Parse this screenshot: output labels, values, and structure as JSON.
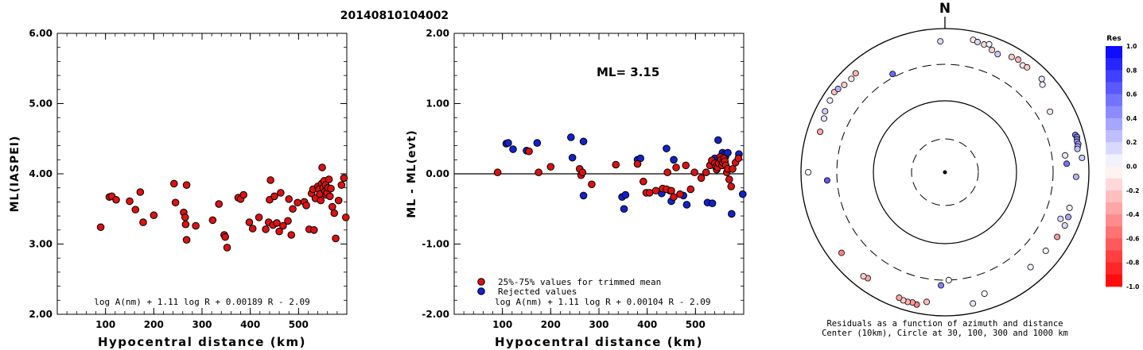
{
  "title": "20140810104002",
  "chart_data": [
    {
      "type": "scatter",
      "name_id": "magnitude",
      "xlabel": "Hypocentral distance (km)",
      "ylabel": "ML(IASPEI)",
      "xlim": [
        0,
        600
      ],
      "ylim": [
        2,
        6
      ],
      "xticks": [
        "100",
        "200",
        "300",
        "400",
        "500"
      ],
      "yticks": [
        "2.00",
        "3.00",
        "4.00",
        "5.00",
        "6.00"
      ],
      "formula": "log A(nm) + 1.11 log R + 0.00189 R - 2.09",
      "points": [
        [
          90,
          3.24
        ],
        [
          108,
          3.67
        ],
        [
          113,
          3.68
        ],
        [
          122,
          3.63
        ],
        [
          150,
          3.61
        ],
        [
          162,
          3.49
        ],
        [
          172,
          3.74
        ],
        [
          178,
          3.31
        ],
        [
          200,
          3.41
        ],
        [
          242,
          3.86
        ],
        [
          245,
          3.59
        ],
        [
          262,
          3.45
        ],
        [
          265,
          3.38
        ],
        [
          266,
          3.28
        ],
        [
          268,
          3.06
        ],
        [
          268,
          3.84
        ],
        [
          287,
          3.26
        ],
        [
          322,
          3.34
        ],
        [
          335,
          3.57
        ],
        [
          346,
          3.13
        ],
        [
          348,
          3.1
        ],
        [
          352,
          2.95
        ],
        [
          375,
          3.66
        ],
        [
          380,
          3.64
        ],
        [
          386,
          3.7
        ],
        [
          398,
          3.31
        ],
        [
          405,
          3.22
        ],
        [
          418,
          3.38
        ],
        [
          432,
          3.21
        ],
        [
          438,
          3.31
        ],
        [
          440,
          3.63
        ],
        [
          442,
          3.91
        ],
        [
          447,
          3.27
        ],
        [
          450,
          3.68
        ],
        [
          455,
          3.3
        ],
        [
          460,
          3.18
        ],
        [
          463,
          3.73
        ],
        [
          468,
          3.26
        ],
        [
          478,
          3.33
        ],
        [
          480,
          3.64
        ],
        [
          485,
          3.13
        ],
        [
          488,
          3.5
        ],
        [
          498,
          3.59
        ],
        [
          512,
          3.6
        ],
        [
          516,
          3.55
        ],
        [
          522,
          3.21
        ],
        [
          527,
          3.72
        ],
        [
          530,
          3.78
        ],
        [
          532,
          3.2
        ],
        [
          535,
          3.65
        ],
        [
          540,
          3.82
        ],
        [
          542,
          3.78
        ],
        [
          544,
          3.71
        ],
        [
          546,
          3.62
        ],
        [
          548,
          3.86
        ],
        [
          549,
          4.09
        ],
        [
          551,
          3.8
        ],
        [
          553,
          3.9
        ],
        [
          555,
          3.75
        ],
        [
          556,
          3.84
        ],
        [
          557,
          3.7
        ],
        [
          559,
          3.73
        ],
        [
          561,
          3.8
        ],
        [
          563,
          3.92
        ],
        [
          565,
          3.68
        ],
        [
          567,
          3.79
        ],
        [
          570,
          3.53
        ],
        [
          574,
          3.44
        ],
        [
          577,
          3.08
        ],
        [
          583,
          3.62
        ],
        [
          589,
          3.84
        ],
        [
          594,
          3.94
        ],
        [
          598,
          3.38
        ]
      ]
    },
    {
      "type": "scatter",
      "name_id": "residual",
      "xlabel": "Hypocentral distance (km)",
      "ylabel": "ML - ML(evt)",
      "xlim": [
        0,
        600
      ],
      "ylim": [
        -2,
        2
      ],
      "xticks": [
        "100",
        "200",
        "300",
        "400",
        "500"
      ],
      "yticks": [
        "-2.00",
        "-1.00",
        "0.00",
        "1.00",
        "2.00"
      ],
      "annotation": "ML= 3.15",
      "formula": "log A(nm) + 1.11 log R + 0.00104 R - 2.09",
      "legend": [
        {
          "label": "25%-75% values for trimmed mean",
          "color": "#dd1111"
        },
        {
          "label": "Rejected values",
          "color": "#1122cc"
        }
      ],
      "trimmed": [
        [
          90,
          0.02
        ],
        [
          155,
          0.32
        ],
        [
          175,
          0.02
        ],
        [
          200,
          0.1
        ],
        [
          260,
          0.07
        ],
        [
          263,
          -0.02
        ],
        [
          266,
          0.02
        ],
        [
          285,
          -0.15
        ],
        [
          335,
          0.13
        ],
        [
          380,
          0.14
        ],
        [
          392,
          -0.11
        ],
        [
          398,
          -0.27
        ],
        [
          405,
          -0.27
        ],
        [
          418,
          -0.24
        ],
        [
          432,
          -0.21
        ],
        [
          440,
          -0.22
        ],
        [
          442,
          0.02
        ],
        [
          450,
          -0.24
        ],
        [
          455,
          -0.33
        ],
        [
          460,
          0.09
        ],
        [
          468,
          -0.29
        ],
        [
          480,
          0.12
        ],
        [
          490,
          -0.22
        ],
        [
          498,
          0.02
        ],
        [
          512,
          -0.06
        ],
        [
          522,
          0.02
        ],
        [
          530,
          0.12
        ],
        [
          534,
          0.19
        ],
        [
          540,
          0.15
        ],
        [
          542,
          0.1
        ],
        [
          544,
          0.06
        ],
        [
          546,
          0.09
        ],
        [
          548,
          0.15
        ],
        [
          551,
          0.24
        ],
        [
          553,
          0.2
        ],
        [
          555,
          0.12
        ],
        [
          557,
          0.16
        ],
        [
          559,
          0.22
        ],
        [
          561,
          0.18
        ],
        [
          563,
          0.12
        ],
        [
          565,
          0.02
        ],
        [
          567,
          0.07
        ],
        [
          570,
          -0.08
        ],
        [
          574,
          -0.18
        ],
        [
          577,
          0.07
        ],
        [
          583,
          0.16
        ],
        [
          589,
          0.22
        ]
      ],
      "rejected": [
        [
          108,
          0.43
        ],
        [
          112,
          0.44
        ],
        [
          122,
          0.35
        ],
        [
          150,
          0.33
        ],
        [
          172,
          0.44
        ],
        [
          242,
          0.52
        ],
        [
          245,
          0.23
        ],
        [
          268,
          0.46
        ],
        [
          268,
          -0.31
        ],
        [
          348,
          -0.33
        ],
        [
          352,
          -0.5
        ],
        [
          355,
          -0.3
        ],
        [
          380,
          0.2
        ],
        [
          386,
          0.22
        ],
        [
          430,
          -0.28
        ],
        [
          440,
          0.36
        ],
        [
          447,
          -0.24
        ],
        [
          450,
          -0.39
        ],
        [
          455,
          0.2
        ],
        [
          475,
          -0.31
        ],
        [
          482,
          -0.44
        ],
        [
          525,
          -0.41
        ],
        [
          535,
          -0.42
        ],
        [
          540,
          0.22
        ],
        [
          547,
          0.48
        ],
        [
          552,
          0.24
        ],
        [
          556,
          0.3
        ],
        [
          560,
          0.27
        ],
        [
          562,
          0.24
        ],
        [
          567,
          0.3
        ],
        [
          575,
          -0.57
        ],
        [
          590,
          0.28
        ],
        [
          598,
          -0.29
        ]
      ]
    },
    {
      "type": "scatter",
      "name_id": "azimuth",
      "north_label": "N",
      "caption_line1": "Residuals as a function of azimuth and distance",
      "caption_line2": "Center (10km), Circle at 30, 100, 300 and 1000 km",
      "colorbar_title": "Res",
      "colorbar_ticks": [
        "1.0",
        "0.8",
        "0.6",
        "0.4",
        "0.2",
        "0.0",
        "-0.2",
        "-0.4",
        "-0.6",
        "-0.8",
        "-1.0"
      ],
      "points": [
        [
          358,
          1000,
          0.15
        ],
        [
          12,
          1200,
          -0.1
        ],
        [
          14,
          1150,
          0.15
        ],
        [
          17,
          1120,
          -0.15
        ],
        [
          19,
          1200,
          0.05
        ],
        [
          21,
          1000,
          -0.2
        ],
        [
          24,
          950,
          0.2
        ],
        [
          30,
          1100,
          -0.2
        ],
        [
          33,
          1150,
          -0.3
        ],
        [
          36,
          1050,
          -0.1
        ],
        [
          38,
          1100,
          -0.2
        ],
        [
          46,
          1150,
          0.1
        ],
        [
          48,
          1000,
          0.05
        ],
        [
          60,
          700,
          -0.1
        ],
        [
          74,
          1200,
          0.5
        ],
        [
          75,
          1250,
          0.5
        ],
        [
          76,
          1220,
          0.45
        ],
        [
          77,
          1200,
          0.35
        ],
        [
          78,
          1230,
          0.4
        ],
        [
          79,
          1180,
          0.3
        ],
        [
          80,
          1150,
          0.25
        ],
        [
          82,
          700,
          0.1
        ],
        [
          84,
          1300,
          0.2
        ],
        [
          86,
          720,
          0.55
        ],
        [
          92,
          1000,
          0.3
        ],
        [
          106,
          950,
          0.05
        ],
        [
          110,
          1000,
          0.35
        ],
        [
          112,
          800,
          0.15
        ],
        [
          114,
          1000,
          0.15
        ],
        [
          120,
          950,
          -0.4
        ],
        [
          128,
          900,
          0.05
        ],
        [
          138,
          900,
          0.05
        ],
        [
          162,
          900,
          0.0
        ],
        [
          168,
          1150,
          0.1
        ],
        [
          178,
          300,
          0.0
        ],
        [
          182,
          460,
          0.5
        ],
        [
          188,
          1000,
          -0.25
        ],
        [
          192,
          1200,
          -0.5
        ],
        [
          194,
          1150,
          -0.4
        ],
        [
          196,
          1180,
          -0.3
        ],
        [
          198,
          1170,
          -0.2
        ],
        [
          200,
          1120,
          -0.35
        ],
        [
          216,
          1000,
          -0.35
        ],
        [
          218,
          1050,
          -0.2
        ],
        [
          232,
          1000,
          -0.5
        ],
        [
          266,
          600,
          0.65
        ],
        [
          270,
          1250,
          0.0
        ],
        [
          288,
          1000,
          -0.35
        ],
        [
          294,
          1050,
          0.1
        ],
        [
          297,
          1150,
          0.2
        ],
        [
          302,
          1200,
          0.05
        ],
        [
          306,
          1250,
          -0.25
        ],
        [
          308,
          1200,
          0.3
        ],
        [
          311,
          1100,
          -0.2
        ],
        [
          315,
          1050,
          -0.1
        ],
        [
          318,
          1100,
          -0.3
        ],
        [
          332,
          400,
          0.6
        ]
      ]
    }
  ]
}
